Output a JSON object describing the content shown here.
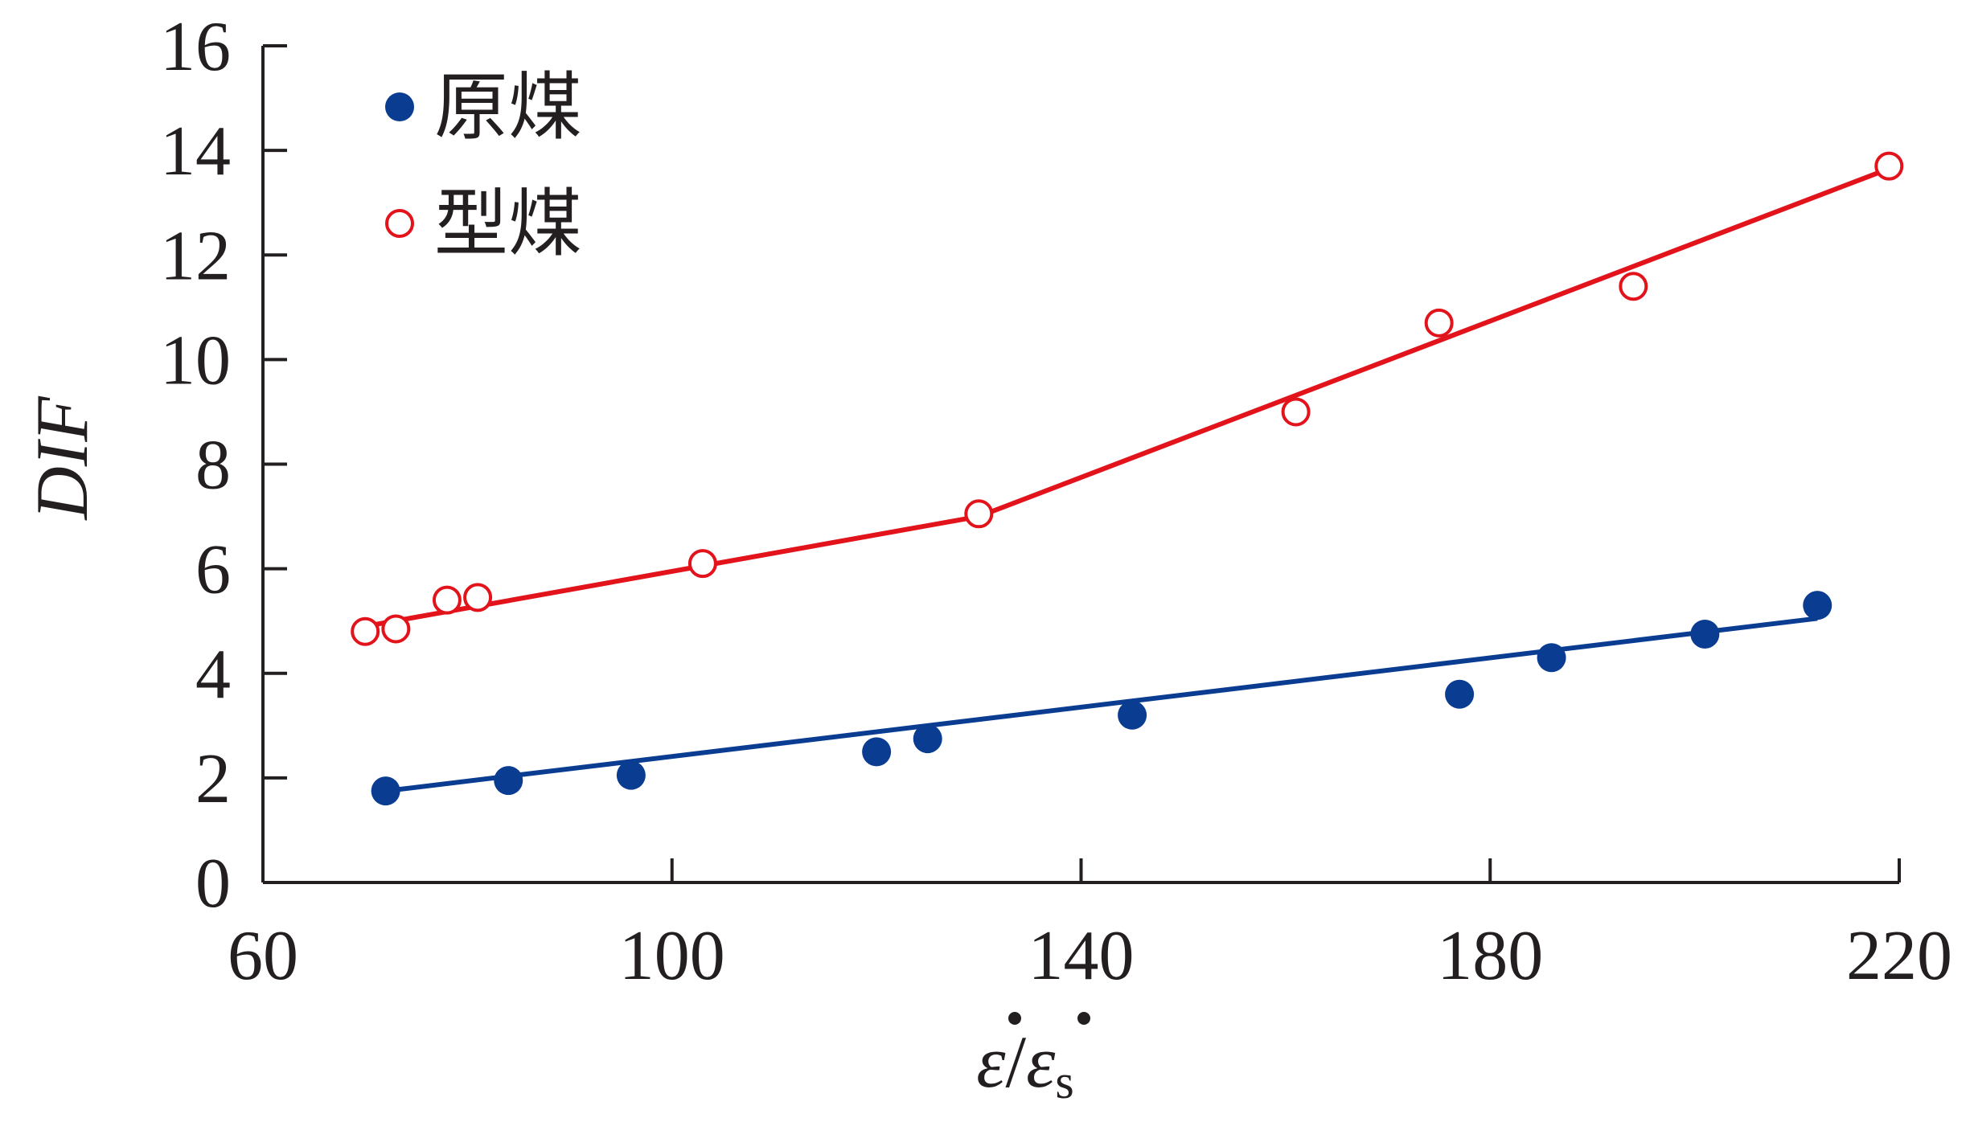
{
  "chart_data": {
    "type": "scatter",
    "xlabel": "ε̇/ε̇s",
    "ylabel": "DIF",
    "xlim": [
      60,
      220
    ],
    "ylim": [
      0,
      16
    ],
    "xticks": [
      "60",
      "100",
      "140",
      "180",
      "220"
    ],
    "yticks": [
      "0",
      "2",
      "4",
      "6",
      "8",
      "10",
      "12",
      "14",
      "16"
    ],
    "legend": {
      "placement": "top-left",
      "items": [
        {
          "label": "原煤",
          "marker": "filled-circle",
          "color": "#0a3d91"
        },
        {
          "label": "型煤",
          "marker": "open-circle",
          "color": "#e3131b"
        }
      ]
    },
    "grid": false,
    "series": [
      {
        "name": "原煤",
        "color": "#0a3d91",
        "marker": "filled-circle",
        "points": [
          [
            72,
            1.75
          ],
          [
            84,
            1.95
          ],
          [
            96,
            2.05
          ],
          [
            120,
            2.5
          ],
          [
            125,
            2.75
          ],
          [
            145,
            3.2
          ],
          [
            177,
            3.6
          ],
          [
            186,
            4.3
          ],
          [
            201,
            4.75
          ],
          [
            212,
            5.3
          ]
        ],
        "fit_line": [
          [
            72,
            1.75
          ],
          [
            212,
            5.05
          ]
        ]
      },
      {
        "name": "型煤",
        "color": "#e3131b",
        "marker": "open-circle",
        "points": [
          [
            70,
            4.8
          ],
          [
            73,
            4.85
          ],
          [
            78,
            5.4
          ],
          [
            81,
            5.45
          ],
          [
            103,
            6.1
          ],
          [
            130,
            7.05
          ],
          [
            161,
            9.0
          ],
          [
            175,
            10.7
          ],
          [
            194,
            11.4
          ],
          [
            219,
            13.7
          ]
        ],
        "fit_line": [
          [
            70,
            4.9
          ],
          [
            130,
            7.0
          ],
          [
            219,
            13.65
          ]
        ]
      }
    ]
  }
}
